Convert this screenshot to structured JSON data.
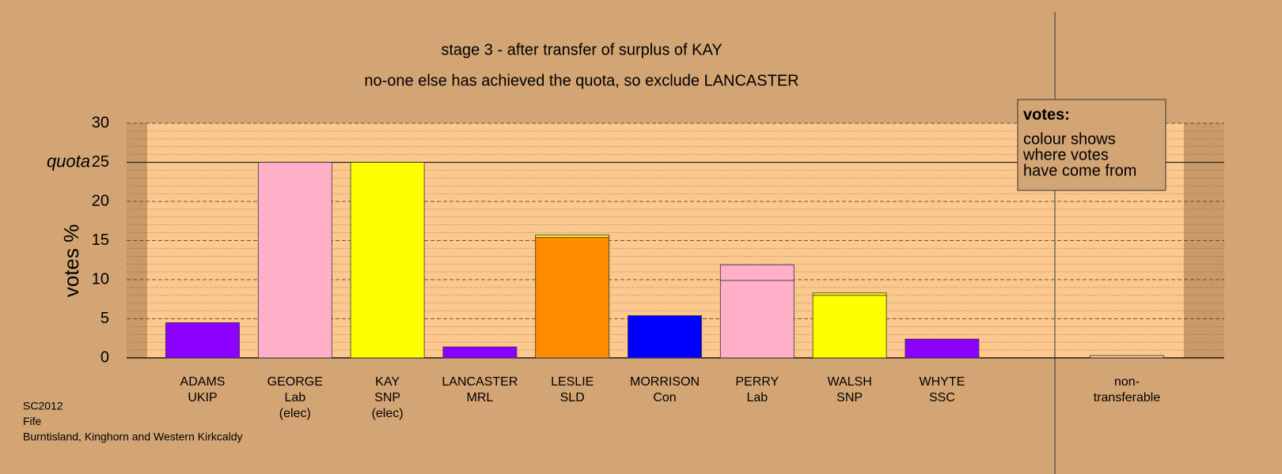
{
  "chart_data": {
    "type": "bar",
    "title": "stage 3 - after transfer of surplus of KAY",
    "subtitle": "no-one else has achieved the quota, so exclude LANCASTER",
    "y_label": "votes %",
    "quota": {
      "value": 25,
      "label": "quota"
    },
    "categories": [
      [
        "ADAMS",
        "UKIP"
      ],
      [
        "GEORGE",
        "Lab",
        "(elec)"
      ],
      [
        "KAY",
        "SNP",
        "(elec)"
      ],
      [
        "LANCASTER",
        "MRL"
      ],
      [
        "LESLIE",
        "SLD"
      ],
      [
        "MORRISON",
        "Con"
      ],
      [
        "PERRY",
        "Lab"
      ],
      [
        "WALSH",
        "SNP"
      ],
      [
        "WHYTE",
        "SSC"
      ],
      [
        "non-",
        "transferable"
      ]
    ],
    "series": [
      {
        "colors": [
          "#8b00ff",
          "#ffb0c8",
          "#ffff00",
          "#8b00ff",
          "#ff8c00",
          "#0000ff",
          "#ffb0c8",
          "#ffff00",
          "#8b00ff",
          "#fcc88e"
        ],
        "values": [
          4.5,
          25,
          25,
          1.4,
          15.4,
          5.4,
          9.9,
          8.0,
          2.4,
          0
        ]
      },
      {
        "colors": [
          "#8b00ff",
          "#ffb0c8",
          "#ffff00",
          "#8b00ff",
          "#ffff00",
          "#0000ff",
          "#ffb0c8",
          "#ffff00",
          "#8b00ff",
          "#fcc88e"
        ],
        "values": [
          0,
          0,
          0,
          0,
          0.3,
          0,
          2.0,
          0.3,
          0,
          0.3
        ]
      }
    ],
    "ylim": [
      0,
      30
    ],
    "yticks": [
      0,
      5,
      10,
      15,
      20,
      25,
      30
    ],
    "grid": true,
    "note": {
      "title": "votes:",
      "lines": [
        "colour shows",
        "where votes",
        "have come from"
      ]
    },
    "footer": [
      "SC2012",
      "Fife",
      "Burntisland, Kinghorn and Western Kirkcaldy"
    ]
  }
}
